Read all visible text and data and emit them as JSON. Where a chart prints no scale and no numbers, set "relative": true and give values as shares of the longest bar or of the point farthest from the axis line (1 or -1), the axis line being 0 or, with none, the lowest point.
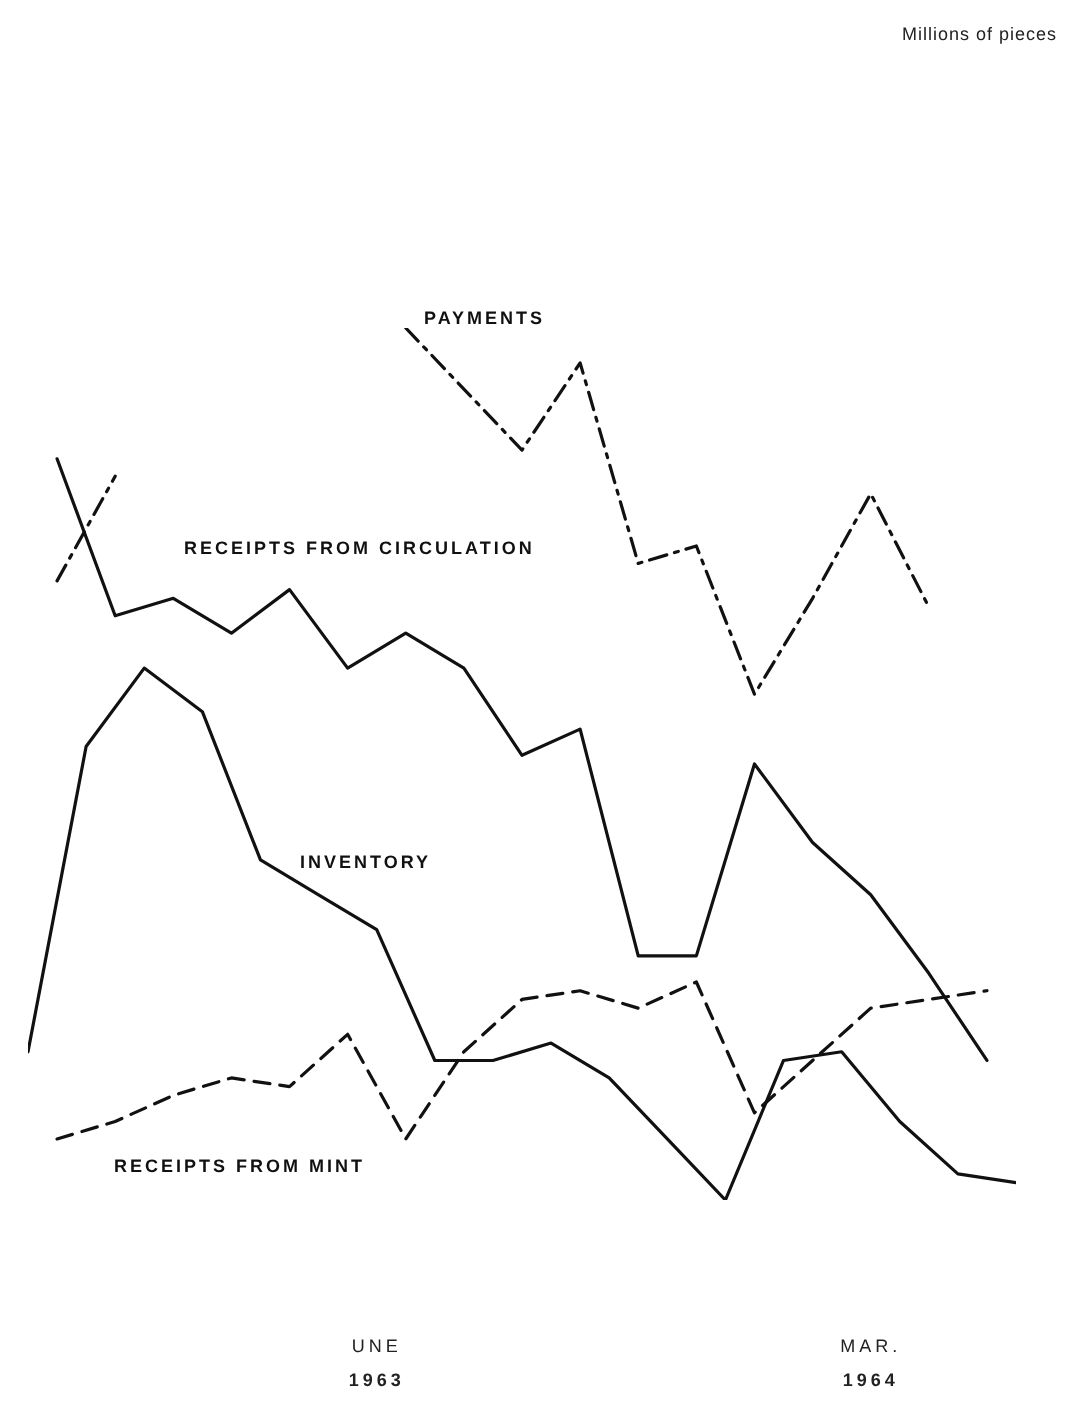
{
  "chart_data": {
    "type": "line",
    "relative": true,
    "annotations": [
      "Millions of pieces"
    ],
    "categories": [
      null,
      null,
      null,
      null,
      null,
      null,
      null,
      null,
      null,
      null,
      null,
      null,
      "UNE 1963",
      null,
      null,
      null,
      null,
      null,
      null,
      null,
      null,
      null,
      null,
      null,
      null,
      null,
      null,
      null,
      null,
      "MAR. 1964",
      null,
      null,
      null,
      null,
      null
    ],
    "grid": false,
    "legend": false,
    "marker": "none",
    "series": [
      {
        "name": "PAYMENTS",
        "color": "#111111",
        "line_style": "dotted",
        "values": [
          null,
          0.71,
          null,
          0.83,
          null,
          null,
          null,
          null,
          null,
          null,
          null,
          null,
          null,
          1.0,
          null,
          0.93,
          null,
          0.86,
          null,
          0.96,
          null,
          0.73,
          null,
          0.75,
          null,
          0.58,
          null,
          0.69,
          null,
          0.81,
          null,
          0.68,
          null,
          null,
          null
        ]
      },
      {
        "name": "RECEIPTS FROM CIRCULATION",
        "color": "#111111",
        "line_style": "solid",
        "values": [
          null,
          0.85,
          null,
          0.67,
          null,
          0.69,
          null,
          0.65,
          null,
          0.7,
          null,
          0.61,
          null,
          0.65,
          null,
          0.61,
          null,
          0.51,
          null,
          0.54,
          null,
          0.28,
          null,
          0.28,
          null,
          0.5,
          null,
          0.41,
          null,
          0.35,
          null,
          0.26,
          null,
          0.16,
          null
        ]
      },
      {
        "name": "INVENTORY",
        "color": "#111111",
        "line_style": "solid",
        "values": [
          0.17,
          null,
          0.52,
          null,
          0.61,
          null,
          0.56,
          null,
          0.39,
          null,
          0.35,
          null,
          0.31,
          null,
          0.16,
          null,
          0.16,
          null,
          0.18,
          null,
          0.14,
          null,
          0.07,
          null,
          0.0,
          null,
          0.16,
          null,
          0.17,
          null,
          0.09,
          null,
          0.03,
          null,
          0.02
        ]
      },
      {
        "name": "RECEIPTS FROM MINT",
        "color": "#111111",
        "line_style": "dashed",
        "values": [
          null,
          0.07,
          null,
          0.09,
          null,
          0.12,
          null,
          0.14,
          null,
          0.13,
          null,
          0.19,
          null,
          0.07,
          null,
          0.17,
          null,
          0.23,
          null,
          0.24,
          null,
          0.22,
          null,
          0.25,
          null,
          0.1,
          null,
          0.16,
          null,
          0.22,
          null,
          0.23,
          null,
          0.24,
          null
        ]
      }
    ]
  }
}
